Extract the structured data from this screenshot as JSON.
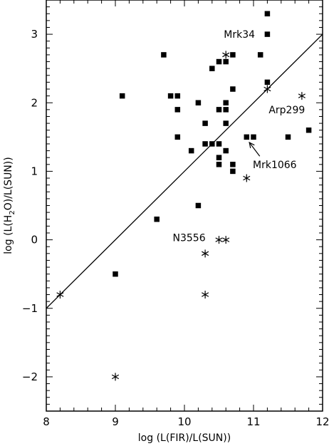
{
  "chart_data": {
    "type": "scatter",
    "xlabel": "log (L(FIR)/L(SUN))",
    "ylabel_parts": [
      "log (L(H",
      "2",
      "O)/L(SUN))"
    ],
    "xlim": [
      8,
      12
    ],
    "ylim": [
      -2.5,
      3.5
    ],
    "grid": false,
    "x_ticks": [
      8,
      9,
      10,
      11,
      12
    ],
    "y_ticks": [
      -2,
      -1,
      0,
      1,
      2,
      3
    ],
    "x_tick_labels": [
      "8",
      "9",
      "10",
      "11",
      "12"
    ],
    "y_tick_labels": [
      "−2",
      "−1",
      "0",
      "1",
      "2",
      "3"
    ],
    "series": [
      {
        "marker": "square",
        "points": [
          [
            9.1,
            2.1
          ],
          [
            9.0,
            -0.5
          ],
          [
            9.6,
            0.3
          ],
          [
            9.7,
            2.7
          ],
          [
            9.8,
            2.1
          ],
          [
            9.9,
            2.1
          ],
          [
            9.9,
            1.9
          ],
          [
            9.9,
            1.5
          ],
          [
            10.1,
            1.3
          ],
          [
            10.2,
            2.0
          ],
          [
            10.2,
            0.5
          ],
          [
            10.3,
            1.7
          ],
          [
            10.3,
            1.4
          ],
          [
            10.4,
            2.5
          ],
          [
            10.4,
            1.4
          ],
          [
            10.5,
            2.6
          ],
          [
            10.5,
            1.9
          ],
          [
            10.5,
            1.4
          ],
          [
            10.5,
            1.2
          ],
          [
            10.5,
            1.1
          ],
          [
            10.6,
            2.6
          ],
          [
            10.6,
            2.0
          ],
          [
            10.6,
            1.9
          ],
          [
            10.6,
            1.7
          ],
          [
            10.6,
            1.3
          ],
          [
            10.7,
            2.7
          ],
          [
            10.7,
            2.2
          ],
          [
            10.7,
            1.1
          ],
          [
            10.7,
            1.0
          ],
          [
            10.9,
            1.5
          ],
          [
            11.0,
            1.5
          ],
          [
            11.1,
            2.7
          ],
          [
            11.2,
            3.3
          ],
          [
            11.2,
            3.0
          ],
          [
            11.2,
            2.3
          ],
          [
            11.5,
            1.5
          ],
          [
            11.8,
            1.6
          ]
        ]
      },
      {
        "marker": "star",
        "points": [
          [
            8.2,
            -0.8
          ],
          [
            9.0,
            -2.0
          ],
          [
            10.3,
            -0.2
          ],
          [
            10.3,
            -0.8
          ],
          [
            10.5,
            0.0
          ],
          [
            10.6,
            0.0
          ],
          [
            10.6,
            2.7
          ],
          [
            10.9,
            0.9
          ],
          [
            11.2,
            2.2
          ],
          [
            11.7,
            2.1
          ]
        ]
      }
    ],
    "fit_line": {
      "x": [
        8.0,
        12.0
      ],
      "y": [
        -1.0,
        3.0
      ]
    },
    "annotations": [
      {
        "text": "Mrk34",
        "x": 10.57,
        "y": 3.0
      },
      {
        "text": "Arp299",
        "x": 11.22,
        "y": 1.9
      },
      {
        "text": "Mrk1066",
        "x": 10.99,
        "y": 1.1
      },
      {
        "text": "N3556",
        "x": 9.83,
        "y": 0.03
      }
    ],
    "arrow": {
      "from": [
        11.09,
        1.22
      ],
      "to": [
        10.94,
        1.42
      ]
    }
  }
}
